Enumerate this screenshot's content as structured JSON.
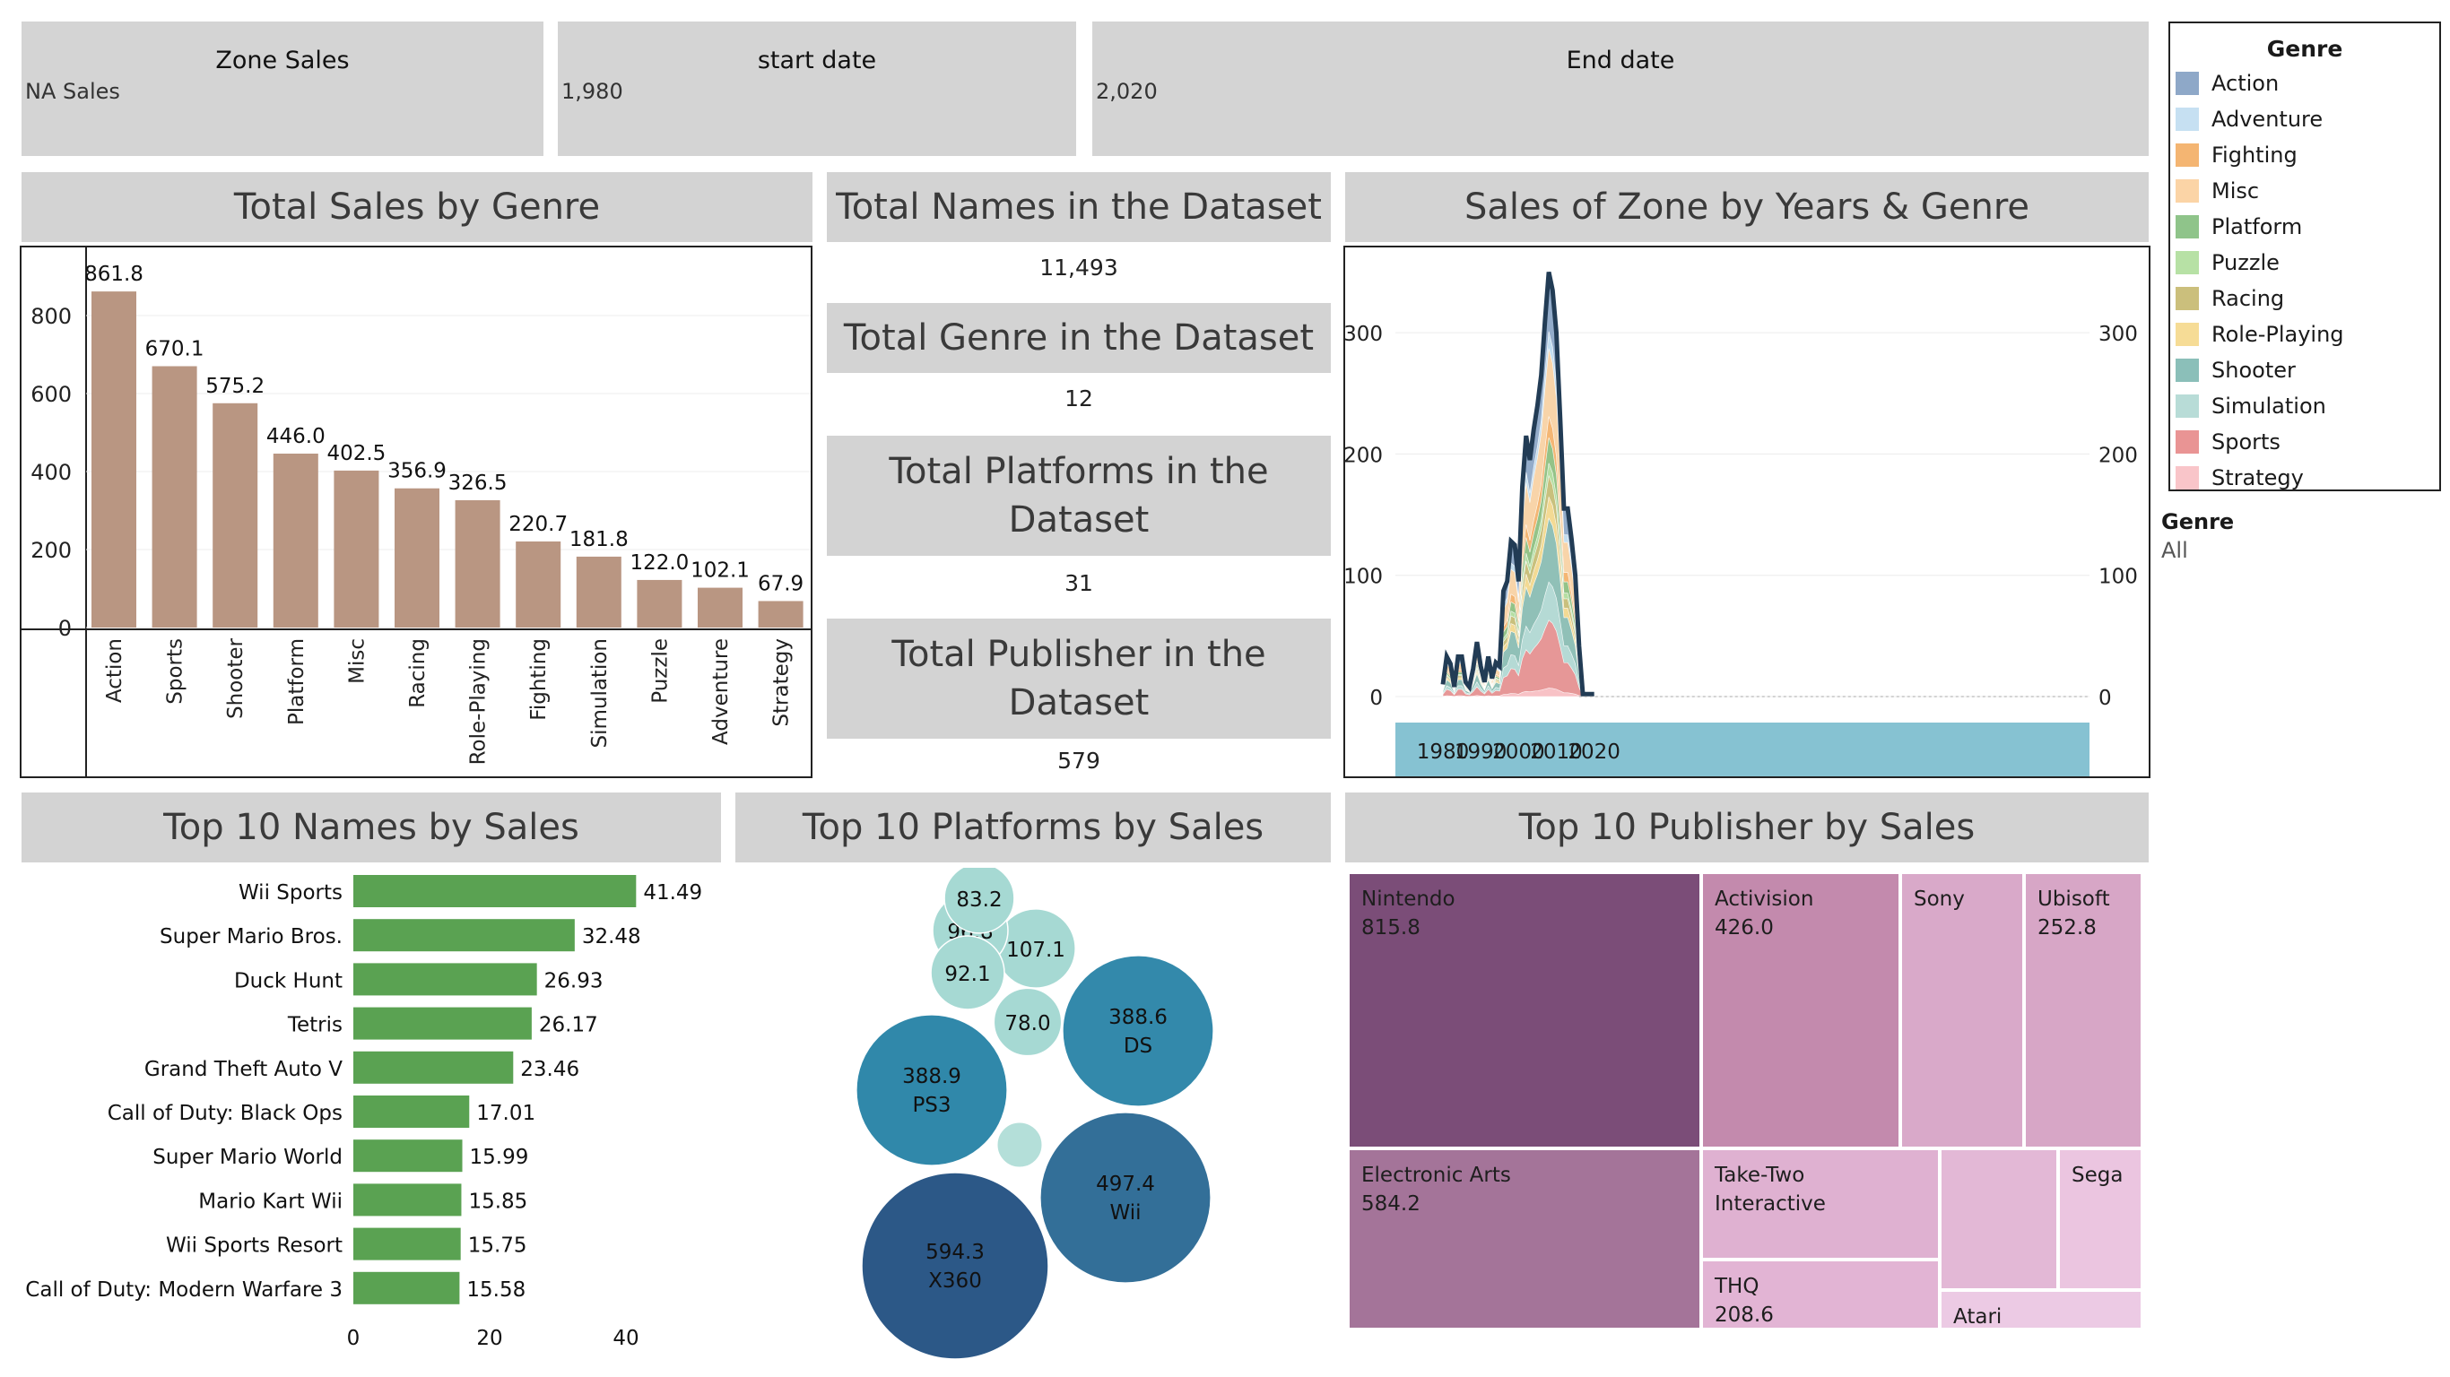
{
  "filters": {
    "zone": {
      "title": "Zone Sales",
      "value": "NA Sales"
    },
    "start": {
      "title": "start date",
      "value": "1,980"
    },
    "end": {
      "title": "End date",
      "value": "2,020"
    }
  },
  "legend": {
    "title": "Genre",
    "items": [
      {
        "label": "Action",
        "color": "#8ea8c8"
      },
      {
        "label": "Adventure",
        "color": "#c6e0f2"
      },
      {
        "label": "Fighting",
        "color": "#f4b572"
      },
      {
        "label": "Misc",
        "color": "#fbd4a6"
      },
      {
        "label": "Platform",
        "color": "#8fc48a"
      },
      {
        "label": "Puzzle",
        "color": "#b7e1a5"
      },
      {
        "label": "Racing",
        "color": "#cbbf7c"
      },
      {
        "label": "Role-Playing",
        "color": "#f6dc96"
      },
      {
        "label": "Shooter",
        "color": "#8bbfb9"
      },
      {
        "label": "Simulation",
        "color": "#b8dcd7"
      },
      {
        "label": "Sports",
        "color": "#e99494"
      },
      {
        "label": "Strategy",
        "color": "#f9c5c9"
      }
    ]
  },
  "genre_filter": {
    "title": "Genre",
    "value": "All"
  },
  "headers": {
    "genre": "Total Sales by Genre",
    "names": "Total Names in the Dataset",
    "genres": "Total Genre in the Dataset",
    "platforms": "Total Platforms in the Dataset",
    "publishers": "Total Publisher in the Dataset",
    "area": "Sales of Zone by Years & Genre",
    "top_names": "Top 10 Names by Sales",
    "top_platforms": "Top 10 Platforms by Sales",
    "top_publishers": "Top 10 Publisher by Sales"
  },
  "kpis": {
    "names": "11,493",
    "genres": "12",
    "platforms": "31",
    "publishers": "579"
  },
  "chart_data": [
    {
      "type": "bar",
      "title": "Total Sales by Genre",
      "categories": [
        "Action",
        "Sports",
        "Shooter",
        "Platform",
        "Misc",
        "Racing",
        "Role-Playing",
        "Fighting",
        "Simulation",
        "Puzzle",
        "Adventure",
        "Strategy"
      ],
      "values": [
        861.8,
        670.1,
        575.2,
        446.0,
        402.5,
        356.9,
        326.5,
        220.7,
        181.8,
        122.0,
        102.1,
        67.9
      ],
      "value_labels": [
        "861.8",
        "670.1",
        "575.2",
        "446.0",
        "402.5",
        "356.9",
        "326.5",
        "220.7",
        "181.8",
        "122.0",
        "102.1",
        "67.9"
      ],
      "yticks": [
        "0",
        "200",
        "400",
        "600",
        "800"
      ],
      "ylim": [
        0,
        870
      ],
      "color": "#b99682"
    },
    {
      "type": "area",
      "title": "Sales of Zone by Years & Genre",
      "stacked": true,
      "x": [
        1980,
        1981,
        1982,
        1983,
        1984,
        1985,
        1986,
        1987,
        1988,
        1989,
        1990,
        1991,
        1992,
        1993,
        1994,
        1995,
        1996,
        1997,
        1998,
        1999,
        2000,
        2001,
        2002,
        2003,
        2004,
        2005,
        2006,
        2007,
        2008,
        2009,
        2010,
        2011,
        2012,
        2013,
        2014,
        2015,
        2016,
        2017,
        2020
      ],
      "total": [
        10,
        33,
        27,
        8,
        33,
        33,
        12,
        8,
        23,
        45,
        25,
        12,
        33,
        15,
        28,
        25,
        87,
        95,
        128,
        125,
        95,
        173,
        215,
        195,
        220,
        240,
        265,
        310,
        350,
        335,
        300,
        230,
        155,
        155,
        130,
        100,
        42,
        2,
        2
      ],
      "series": [
        {
          "name": "Sports",
          "values": [
            2,
            3,
            3,
            2,
            3,
            3,
            2,
            2,
            3,
            5,
            3,
            2,
            3,
            2,
            3,
            3,
            8,
            15,
            18,
            15,
            15,
            25,
            35,
            40,
            45,
            45,
            55,
            50,
            60,
            42,
            45,
            35,
            25,
            25,
            20,
            18,
            8,
            0,
            0
          ]
        },
        {
          "name": "Shooter",
          "values": [
            3,
            18,
            12,
            2,
            20,
            10,
            3,
            2,
            4,
            5,
            5,
            2,
            4,
            3,
            5,
            5,
            10,
            10,
            12,
            15,
            10,
            25,
            35,
            30,
            35,
            40,
            45,
            55,
            50,
            55,
            60,
            55,
            45,
            45,
            40,
            30,
            12,
            0,
            0
          ]
        },
        {
          "name": "Racing",
          "values": [
            1,
            3,
            3,
            1,
            3,
            3,
            1,
            1,
            2,
            3,
            2,
            1,
            3,
            2,
            3,
            3,
            15,
            10,
            15,
            12,
            12,
            20,
            22,
            18,
            22,
            22,
            20,
            25,
            30,
            25,
            20,
            15,
            8,
            8,
            8,
            5,
            2,
            0,
            0
          ]
        }
      ],
      "yticks": [
        "0",
        "100",
        "200",
        "300"
      ],
      "xticks": [
        "1980",
        "1990",
        "2000",
        "2010",
        "2020"
      ],
      "ylim": [
        0,
        370
      ]
    },
    {
      "type": "bar",
      "title": "Top 10 Names by Sales",
      "orientation": "horizontal",
      "categories": [
        "Wii Sports",
        "Super Mario Bros.",
        "Duck Hunt",
        "Tetris",
        "Grand Theft Auto V",
        "Call of Duty: Black Ops",
        "Super Mario World",
        "Mario Kart Wii",
        "Wii Sports Resort",
        "Call of Duty: Modern Warfare 3"
      ],
      "values": [
        41.49,
        32.48,
        26.93,
        26.17,
        23.46,
        17.01,
        15.99,
        15.85,
        15.75,
        15.58
      ],
      "value_labels": [
        "41.49",
        "32.48",
        "26.93",
        "26.17",
        "23.46",
        "17.01",
        "15.99",
        "15.85",
        "15.75",
        "15.58"
      ],
      "xticks": [
        "0",
        "20",
        "40"
      ],
      "xlim": [
        0,
        52
      ],
      "color": "#5aa252"
    },
    {
      "type": "bubble",
      "title": "Top 10 Platforms by Sales",
      "items": [
        {
          "label": "X360",
          "value": 594.3,
          "value_label": "594.3",
          "color": "#2c5887"
        },
        {
          "label": "Wii",
          "value": 497.4,
          "value_label": "497.4",
          "color": "#336f98"
        },
        {
          "label": "PS3",
          "value": 388.9,
          "value_label": "388.9",
          "color": "#3088aa"
        },
        {
          "label": "DS",
          "value": 388.6,
          "value_label": "388.6",
          "color": "#3389ab"
        },
        {
          "label": "",
          "value": 107.1,
          "value_label": "107.1",
          "color": "#a6d9d3"
        },
        {
          "label": "",
          "value": 96.8,
          "value_label": "96.8",
          "color": "#a6d9d3"
        },
        {
          "label": "",
          "value": 92.1,
          "value_label": "92.1",
          "color": "#a6d9d3"
        },
        {
          "label": "",
          "value": 83.2,
          "value_label": "83.2",
          "color": "#a6d9d3"
        },
        {
          "label": "",
          "value": 78.0,
          "value_label": "78.0",
          "color": "#a6d9d3"
        },
        {
          "label": "",
          "value": 35,
          "value_label": "",
          "color": "#b4dfd9"
        }
      ]
    },
    {
      "type": "treemap",
      "title": "Top 10 Publisher by Sales",
      "items": [
        {
          "label": "Nintendo",
          "value_label": "815.8",
          "value": 815.8,
          "color": "#7b4d78"
        },
        {
          "label": "Electronic Arts",
          "value_label": "584.2",
          "value": 584.2,
          "color": "#a47499"
        },
        {
          "label": "Activision",
          "value_label": "426.0",
          "value": 426.0,
          "color": "#c38aad"
        },
        {
          "label": "Sony",
          "value_label": "",
          "value": 0,
          "color": "#d9a9c9"
        },
        {
          "label": "Ubisoft",
          "value_label": "252.8",
          "value": 252.8,
          "color": "#d7a6c6"
        },
        {
          "label": "Take-Two Interactive",
          "value_label": "",
          "value": 0,
          "color": "#dfb1d1"
        },
        {
          "label": "",
          "value_label": "",
          "value": 0,
          "color": "#e3b8d6"
        },
        {
          "label": "Sega",
          "value_label": "",
          "value": 0,
          "color": "#ebc5e0"
        },
        {
          "label": "THQ",
          "value_label": "208.6",
          "value": 208.6,
          "color": "#e2b4d4"
        },
        {
          "label": "Atari",
          "value_label": "",
          "value": 0,
          "color": "#eccae4"
        }
      ]
    }
  ]
}
